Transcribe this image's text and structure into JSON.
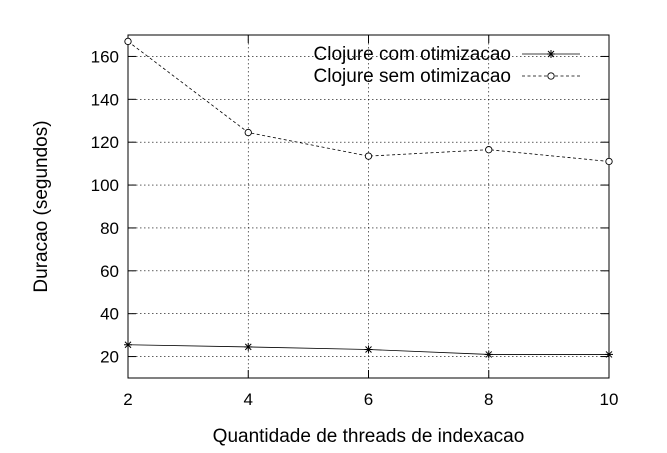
{
  "chart_data": {
    "type": "line",
    "xlabel": "Quantidade de threads de indexacao",
    "ylabel": "Duracao (segundos)",
    "x": [
      2,
      4,
      6,
      8,
      10
    ],
    "xlim": [
      2,
      10
    ],
    "ylim": [
      10,
      170
    ],
    "xticks": [
      "2",
      "4",
      "6",
      "8",
      "10"
    ],
    "yticks": [
      "20",
      "40",
      "60",
      "80",
      "100",
      "120",
      "140",
      "160"
    ],
    "grid": true,
    "legend_position": "top-right",
    "series": [
      {
        "name": "Clojure com otimizacao",
        "marker": "star",
        "line_style": "solid",
        "color": "#000000",
        "values": [
          25.5,
          24.5,
          23.3,
          21.0,
          21.0
        ]
      },
      {
        "name": "Clojure sem otimizacao",
        "marker": "circle",
        "line_style": "dashed",
        "color": "#000000",
        "values": [
          167,
          124.5,
          113.5,
          116.5,
          111
        ]
      }
    ]
  }
}
